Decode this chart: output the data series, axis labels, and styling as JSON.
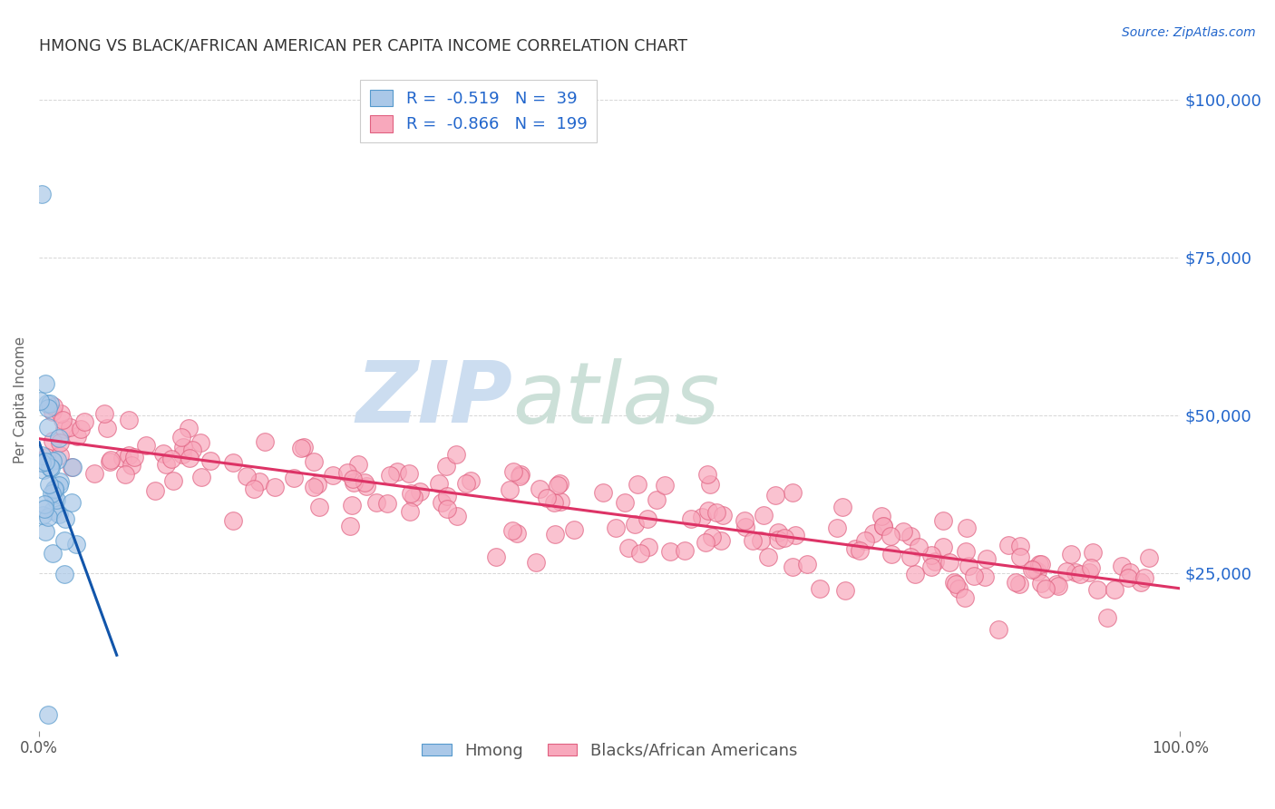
{
  "title": "HMONG VS BLACK/AFRICAN AMERICAN PER CAPITA INCOME CORRELATION CHART",
  "source": "Source: ZipAtlas.com",
  "ylabel": "Per Capita Income",
  "xlabel_ticks": [
    "0.0%",
    "100.0%"
  ],
  "ytick_labels": [
    "$25,000",
    "$50,000",
    "$75,000",
    "$100,000"
  ],
  "ytick_values": [
    25000,
    50000,
    75000,
    100000
  ],
  "legend_labels": [
    "Hmong",
    "Blacks/African Americans"
  ],
  "hmong_color": "#aac8e8",
  "black_color": "#f8a8bc",
  "hmong_edge_color": "#5599cc",
  "black_edge_color": "#e06080",
  "hmong_line_color": "#1155aa",
  "black_line_color": "#dd3366",
  "hmong_R": "-0.519",
  "hmong_N": "39",
  "black_R": "-0.866",
  "black_N": "199",
  "background_color": "#ffffff",
  "grid_color": "#cccccc",
  "title_color": "#333333",
  "axis_label_color": "#666666",
  "right_label_color": "#2266cc",
  "watermark_ZIP": "ZIP",
  "watermark_atlas": "atlas",
  "watermark_color_ZIP": "#ccddf0",
  "watermark_color_atlas": "#cce0d8",
  "ylim": [
    0,
    105000
  ],
  "xlim": [
    0.0,
    1.0
  ],
  "legend_R_color": "#2266cc",
  "legend_RN_text_color": "#222222"
}
